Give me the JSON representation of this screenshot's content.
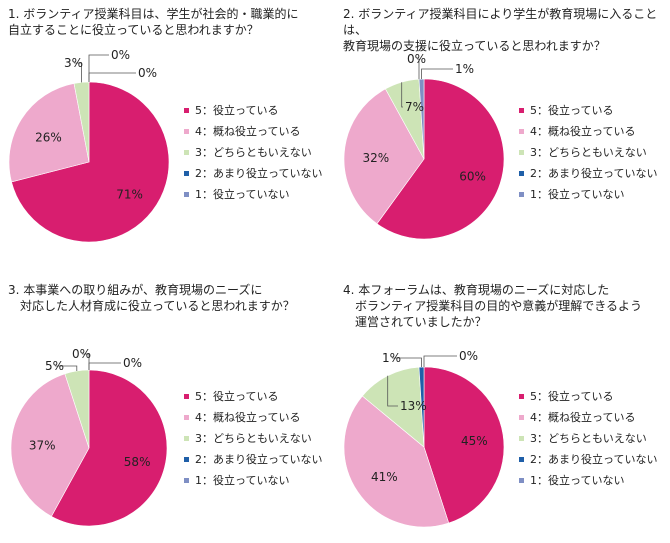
{
  "colors": {
    "s5": "#d81e6f",
    "s4": "#eea9cc",
    "s3": "#cde4b6",
    "s2": "#1f5fa8",
    "s1": "#7f8fc4",
    "leader": "#555555"
  },
  "chart_data": [
    {
      "type": "pie",
      "title": "1. ボランティア授業科目は、学生が社会的・職業的に\n自立することに役立っていると思われますか？",
      "legend": [
        {
          "name": "5：役立っている",
          "value": 71,
          "label": "71%"
        },
        {
          "name": "4：概ね役立っている",
          "value": 26,
          "label": "26%"
        },
        {
          "name": "3：どちらともいえない",
          "value": 3,
          "label": "3%"
        },
        {
          "name": "2：あまり役立っていない",
          "value": 0,
          "label": "0%"
        },
        {
          "name": "1：役立っていない",
          "value": 0,
          "label": "0%"
        }
      ],
      "legend_position": "right"
    },
    {
      "type": "pie",
      "title": "2. ボランティア授業科目により学生が教育現場に入ることは、\n教育現場の支援に役立っていると思われますか？",
      "legend": [
        {
          "name": "5：役立っている",
          "value": 60,
          "label": "60%"
        },
        {
          "name": "4：概ね役立っている",
          "value": 32,
          "label": "32%"
        },
        {
          "name": "3：どちらともいえない",
          "value": 7,
          "label": "7%"
        },
        {
          "name": "2：あまり役立っていない",
          "value": 0,
          "label": "0%"
        },
        {
          "name": "1：役立っていない",
          "value": 1,
          "label": "1%"
        }
      ],
      "legend_position": "right"
    },
    {
      "type": "pie",
      "title": "3. 本事業への取り組みが、教育現場のニーズに\n　対応した人材育成に役立っていると思われますか？",
      "legend": [
        {
          "name": "5：役立っている",
          "value": 58,
          "label": "58%"
        },
        {
          "name": "4：概ね役立っている",
          "value": 37,
          "label": "37%"
        },
        {
          "name": "3：どちらともいえない",
          "value": 5,
          "label": "5%"
        },
        {
          "name": "2：あまり役立っていない",
          "value": 0,
          "label": "0%"
        },
        {
          "name": "1：役立っていない",
          "value": 0,
          "label": "0%"
        }
      ],
      "legend_position": "right"
    },
    {
      "type": "pie",
      "title": "4. 本フォーラムは、教育現場のニーズに対応した\n　ボランティア授業科目の目的や意義が理解できるよう\n　運営されていましたか？",
      "legend": [
        {
          "name": "5：役立っている",
          "value": 45,
          "label": "45%"
        },
        {
          "name": "4：概ね役立っている",
          "value": 41,
          "label": "41%"
        },
        {
          "name": "3：どちらともいえない",
          "value": 13,
          "label": "13%"
        },
        {
          "name": "2：あまり役立っていない",
          "value": 1,
          "label": "1%"
        },
        {
          "name": "1：役立っていない",
          "value": 0,
          "label": "0%"
        }
      ],
      "legend_position": "right"
    }
  ]
}
